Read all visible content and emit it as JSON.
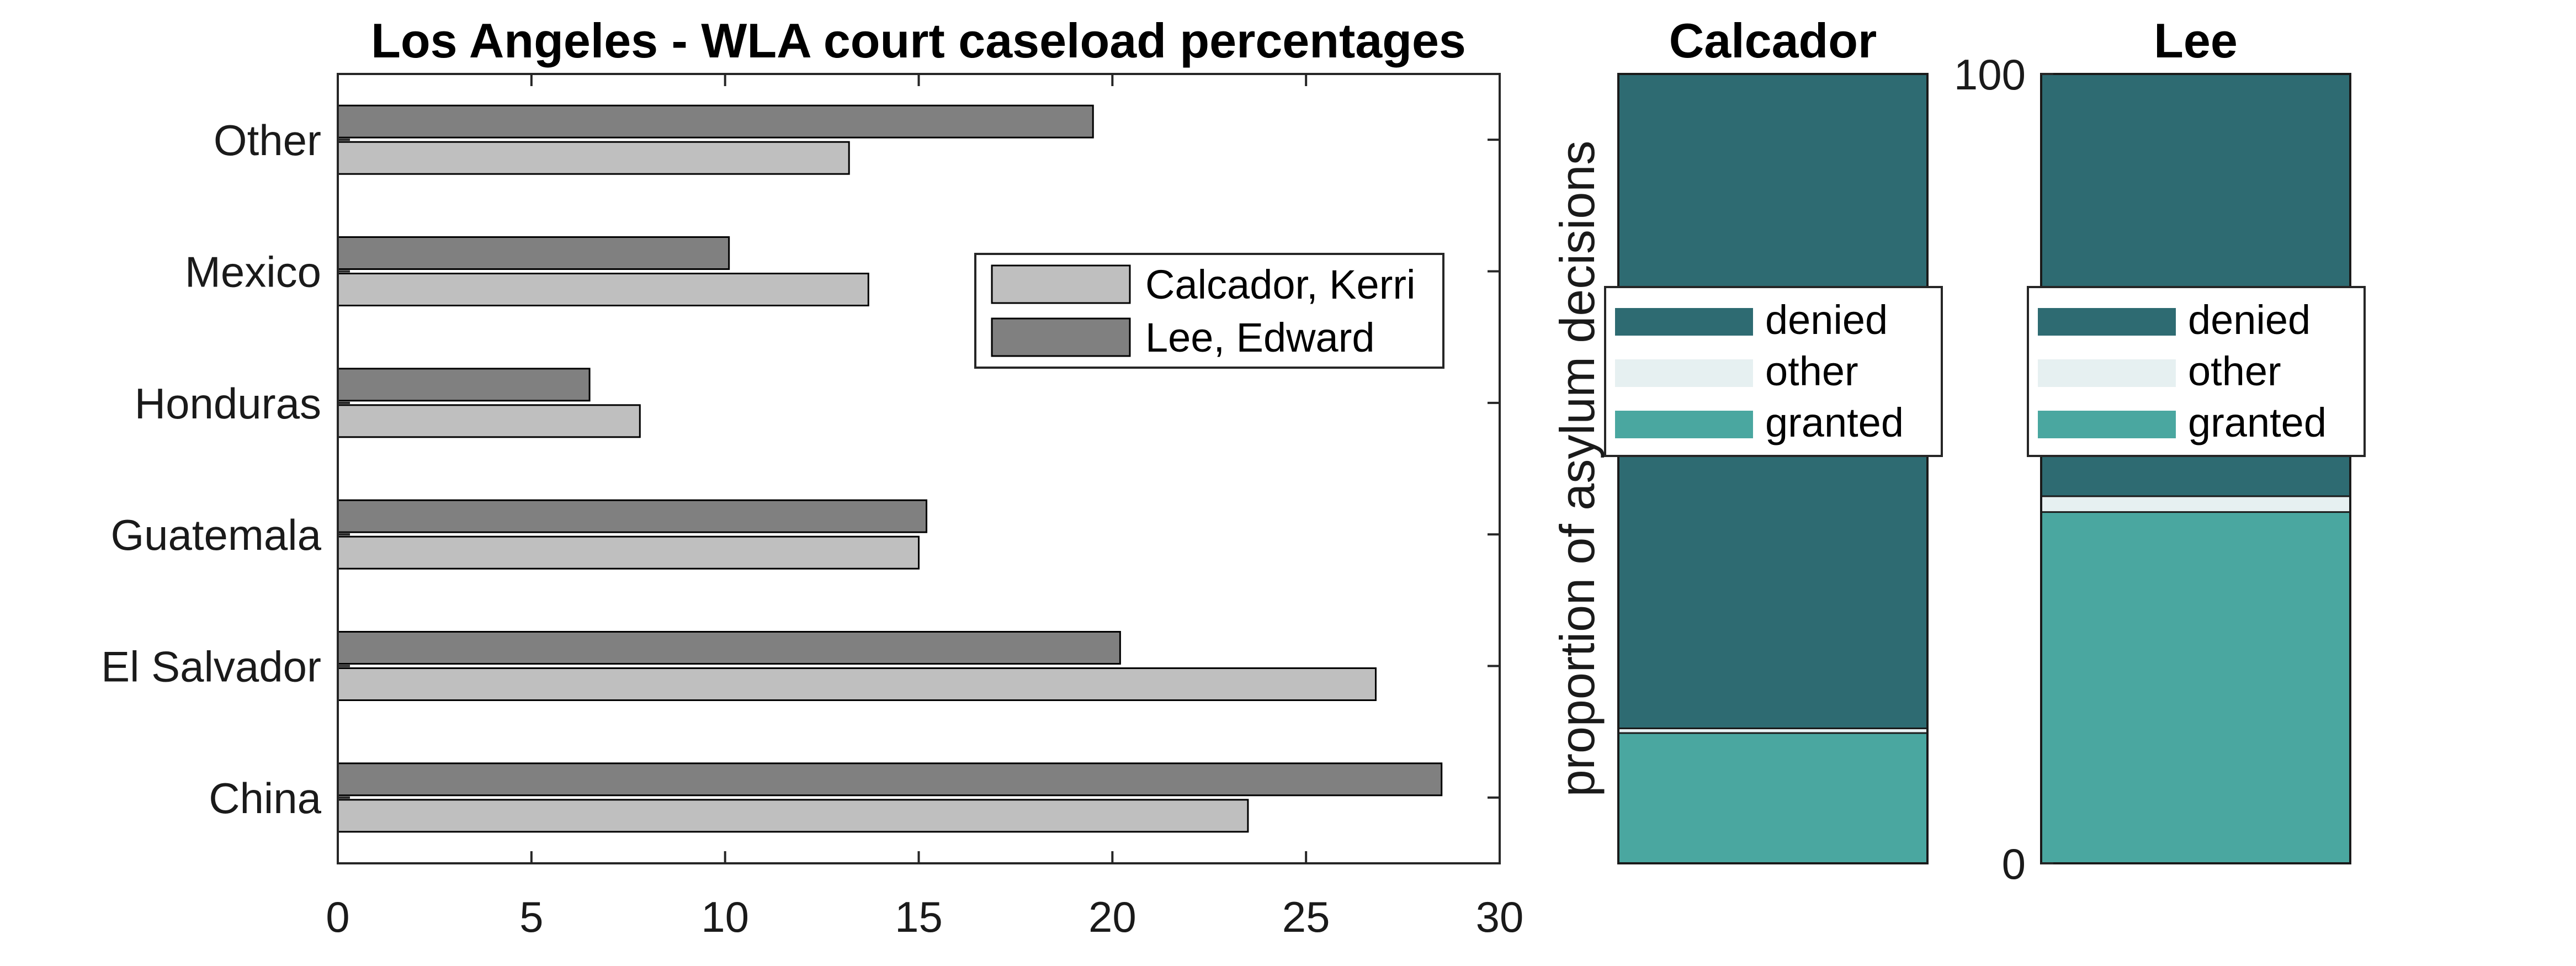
{
  "chart_data": [
    {
      "type": "bar",
      "orientation": "horizontal",
      "title": "Los Angeles - WLA court caseload percentages",
      "xlabel": "",
      "ylabel": "",
      "xlim": [
        0,
        30
      ],
      "xticks": [
        "0",
        "5",
        "10",
        "15",
        "20",
        "25",
        "30"
      ],
      "categories": [
        "China",
        "El Salvador",
        "Guatemala",
        "Honduras",
        "Mexico",
        "Other"
      ],
      "series": [
        {
          "name": "Calcador, Kerri",
          "color": "#bfbfbf",
          "values": [
            23.5,
            26.8,
            15.0,
            7.8,
            13.7,
            13.2
          ]
        },
        {
          "name": "Lee, Edward",
          "color": "#808080",
          "values": [
            28.5,
            20.2,
            15.2,
            6.5,
            10.1,
            19.5
          ]
        }
      ],
      "legend": "center-right",
      "grid": false
    },
    {
      "type": "bar",
      "stacked": true,
      "ylabel": "proportion of asylum decisions",
      "ylim": [
        0,
        100
      ],
      "yticks": [
        "0",
        "100"
      ],
      "panels": [
        {
          "title": "Calcador",
          "granted": 16.5,
          "other": 0.6,
          "denied": 82.9
        },
        {
          "title": "Lee",
          "granted": 44.5,
          "other": 2.0,
          "denied": 53.5
        }
      ],
      "legend_entries": [
        "denied",
        "other",
        "granted"
      ],
      "colors": {
        "denied": "#2e6b72",
        "other": "#e6f0f1",
        "granted": "#4aa7a0"
      },
      "legend": "upper-middle",
      "grid": false
    }
  ]
}
